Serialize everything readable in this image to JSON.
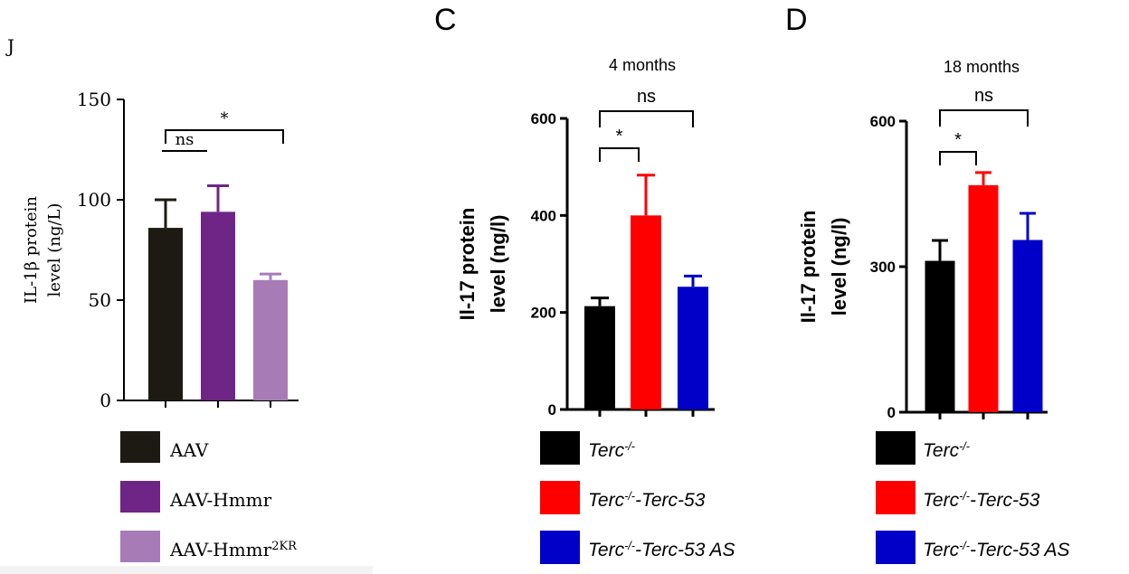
{
  "colors": {
    "AAV": "#1c1a13",
    "AAV-Hmmr": "#6e2586",
    "AAV-Hmmr2KR": "#a77cb6",
    "Terc": "#000000",
    "Terc-Terc-53": "#ff0000",
    "Terc-Terc-53 AS": "#0000c8"
  },
  "chart_data": [
    {
      "type": "bar",
      "panel_label": "J",
      "title": "",
      "xlabel": "",
      "ylabel": "IL-1β protein level (ng/L)",
      "ylabel_lines": [
        "IL-1β protein",
        "level (ng/L)"
      ],
      "ylim": [
        0,
        150
      ],
      "yticks": [
        0,
        50,
        100,
        150
      ],
      "ytick_labels": [
        "0",
        "50",
        "100",
        "150"
      ],
      "categories": [
        "AAV",
        "AAV-Hmmr",
        "AAV-Hmmr2KR"
      ],
      "values": [
        86,
        94,
        60
      ],
      "errors": [
        14,
        13,
        3
      ],
      "significance": [
        {
          "from": 0,
          "to": 1,
          "label": "ns"
        },
        {
          "from": 0,
          "to": 2,
          "label": "*"
        }
      ],
      "legend": [
        {
          "name": "AAV",
          "sup": ""
        },
        {
          "name": "AAV-Hmmr",
          "sup": ""
        },
        {
          "name": "AAV-Hmmr",
          "sup": "2KR"
        }
      ],
      "grid": false
    },
    {
      "type": "bar",
      "panel_label": "C",
      "title": "4 months",
      "xlabel": "",
      "ylabel": "Il-17 protein level (ng/l)",
      "ylabel_lines": [
        "Il-17 protein",
        "level (ng/l)"
      ],
      "ylim": [
        0,
        600
      ],
      "yticks": [
        0,
        200,
        400,
        600
      ],
      "ytick_labels": [
        "0",
        "200",
        "400",
        "600"
      ],
      "categories": [
        "Terc-/-",
        "Terc-/--Terc-53",
        "Terc-/--Terc-53 AS"
      ],
      "values": [
        213,
        400,
        253
      ],
      "errors": [
        17,
        83,
        22
      ],
      "significance": [
        {
          "from": 0,
          "to": 1,
          "label": "*"
        },
        {
          "from": 0,
          "to": 2,
          "label": "ns"
        }
      ],
      "legend": [
        {
          "base": "Terc",
          "sup": "-/-",
          "suffix": ""
        },
        {
          "base": "Terc",
          "sup": "-/-",
          "suffix": "-Terc-53"
        },
        {
          "base": "Terc",
          "sup": "-/-",
          "suffix": "-Terc-53 AS"
        }
      ],
      "grid": false
    },
    {
      "type": "bar",
      "panel_label": "D",
      "title": "18 months",
      "xlabel": "",
      "ylabel": "Il-17 protein level (ng/l)",
      "ylabel_lines": [
        "Il-17 protein",
        "level (ng/l)"
      ],
      "ylim": [
        0,
        600
      ],
      "yticks": [
        0,
        300,
        600
      ],
      "ytick_labels": [
        "0",
        "300",
        "600"
      ],
      "categories": [
        "Terc-/-",
        "Terc-/--Terc-53",
        "Terc-/--Terc-53 AS"
      ],
      "values": [
        312,
        468,
        355
      ],
      "errors": [
        42,
        26,
        55
      ],
      "significance": [
        {
          "from": 0,
          "to": 1,
          "label": "*"
        },
        {
          "from": 0,
          "to": 2,
          "label": "ns"
        }
      ],
      "legend": [
        {
          "base": "Terc",
          "sup": "-/-",
          "suffix": ""
        },
        {
          "base": "Terc",
          "sup": "-/-",
          "suffix": "-Terc-53"
        },
        {
          "base": "Terc",
          "sup": "-/-",
          "suffix": "-Terc-53 AS"
        }
      ],
      "grid": false
    }
  ]
}
